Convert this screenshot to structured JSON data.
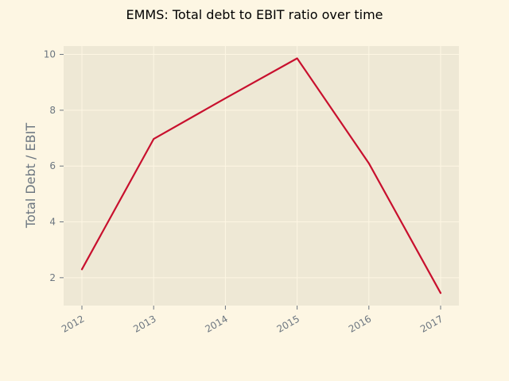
{
  "chart_data": {
    "type": "line",
    "title": "EMMS: Total debt to EBIT ratio over time",
    "xlabel": "",
    "ylabel": "Total Debt / EBIT",
    "x": [
      "2012",
      "2013",
      "2014",
      "2015",
      "2016",
      "2017"
    ],
    "series": [
      {
        "values": [
          2.3,
          6.97,
          8.43,
          9.86,
          6.1,
          1.45
        ]
      }
    ],
    "yticks": [
      2,
      4,
      6,
      8,
      10
    ],
    "ylim": [
      1.0,
      10.3
    ],
    "grid": true,
    "legend": "none"
  },
  "colors": {
    "figure_background": "#fdf6e3",
    "plot_background": "#eee8d5",
    "grid": "#fdf6e3",
    "line": "#c8102e",
    "tick_text": "#6c7680"
  }
}
